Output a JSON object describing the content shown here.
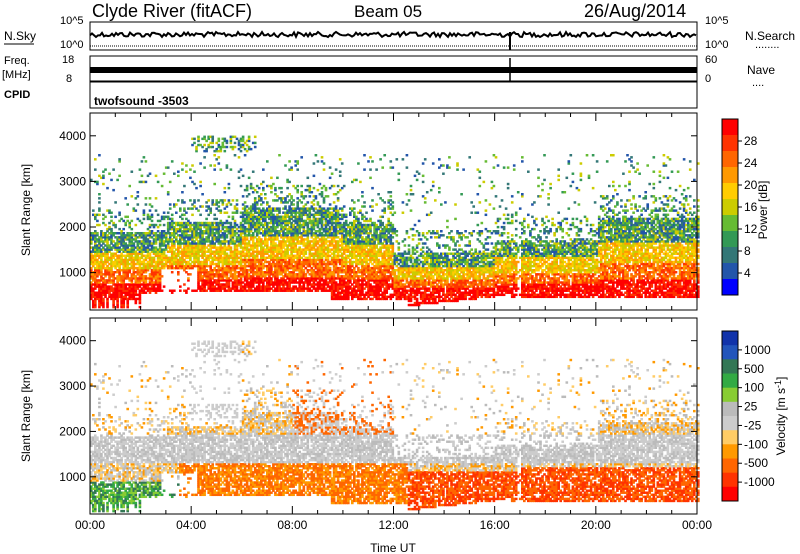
{
  "header": {
    "title": "Clyde River (fitACF)",
    "beam": "Beam 05",
    "date": "26/Aug/2014"
  },
  "housekeeping": {
    "nsky_label": "N.Sky",
    "nsearch_label": "N.Search",
    "freq_label": "Freq.",
    "freq_unit": "[MHz]",
    "nave_label": "Nave",
    "cpid_label": "CPID",
    "cpid_value": "twofsound -3503",
    "noise_ticks": [
      "10^5",
      "10^0"
    ],
    "freq_ticks": [
      "18",
      "8"
    ],
    "nave_ticks": [
      "60",
      "0"
    ],
    "nsearch_dots": "........",
    "nave_dots": "...."
  },
  "chart_data": [
    {
      "type": "heatmap",
      "name": "power",
      "xlabel": "",
      "ylabel": "Slant Range [km]",
      "xlim": [
        0,
        24
      ],
      "ylim": [
        180,
        4500
      ],
      "yticks": [
        1000,
        2000,
        3000,
        4000
      ],
      "colorbar": {
        "label": "Power [dB]",
        "ticks": [
          "28",
          "24",
          "20",
          "16",
          "12",
          "8",
          "4"
        ],
        "colors": [
          "#ff0000",
          "#ff3300",
          "#ff6600",
          "#ff9900",
          "#ffcc00",
          "#cccc00",
          "#66bb33",
          "#339955",
          "#337777",
          "#2255aa",
          "#0000ff"
        ]
      }
    },
    {
      "type": "heatmap",
      "name": "velocity",
      "xlabel": "Time UT",
      "ylabel": "Slant Range [km]",
      "xlim": [
        0,
        24
      ],
      "ylim": [
        180,
        4500
      ],
      "xticks": [
        "00:00",
        "04:00",
        "08:00",
        "12:00",
        "16:00",
        "20:00",
        "00:00"
      ],
      "yticks": [
        1000,
        2000,
        3000,
        4000
      ],
      "colorbar": {
        "label": "Velocity [m s",
        "label_sup": "-1",
        "label_end": "]",
        "ticks": [
          "1000",
          "500",
          "100",
          "25",
          "-25",
          "-100",
          "-500",
          "-1000"
        ],
        "colors": [
          "#1133aa",
          "#2255bb",
          "#337755",
          "#33aa44",
          "#88cc33",
          "#bbbbbb",
          "#cccccc",
          "#ffcc66",
          "#ff9900",
          "#ff6600",
          "#ff3300",
          "#ff0000"
        ]
      }
    }
  ]
}
